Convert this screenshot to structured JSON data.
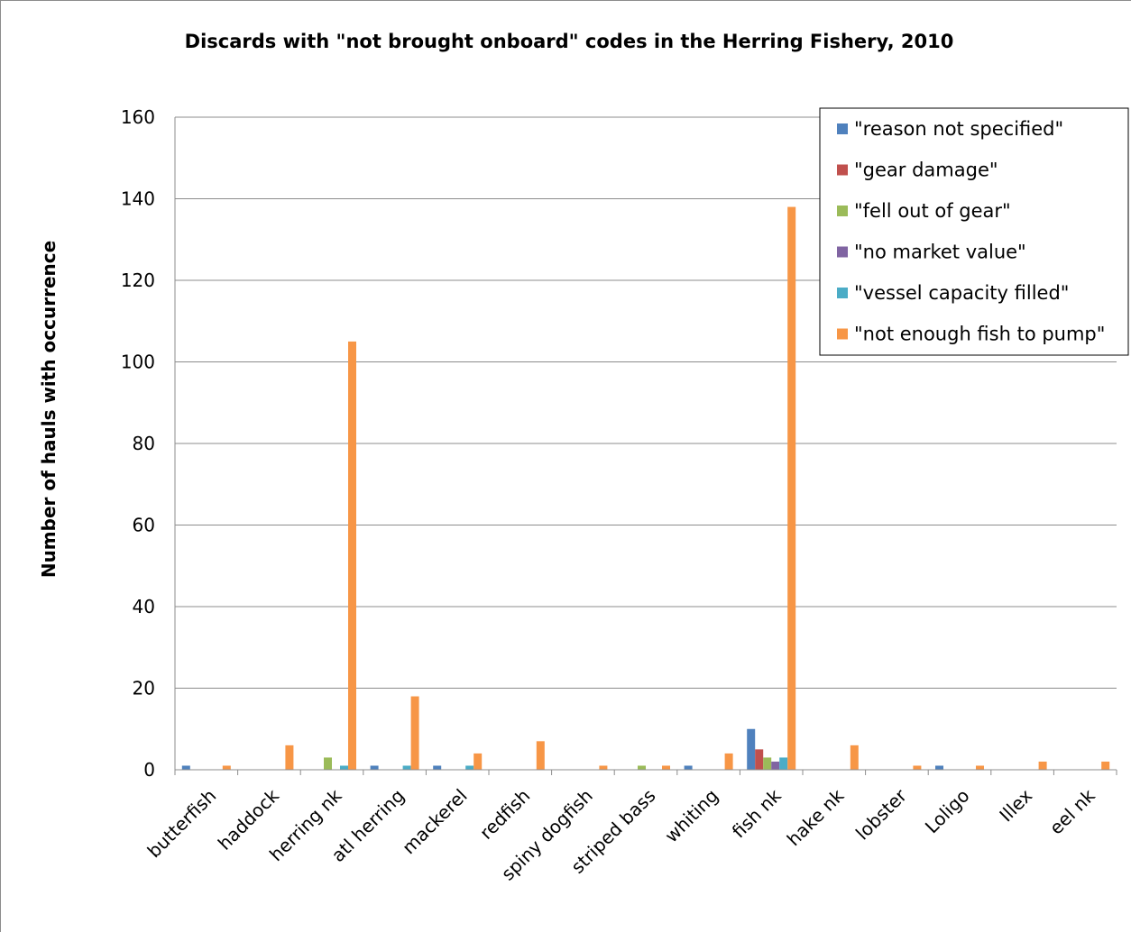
{
  "chart_data": {
    "type": "bar",
    "title": "Discards with \"not brought onboard\" codes in the Herring Fishery, 2010",
    "xlabel": "",
    "ylabel": "Number of hauls with occurrence",
    "ylim": [
      0,
      160
    ],
    "yticks": [
      "0",
      "20",
      "40",
      "60",
      "80",
      "100",
      "120",
      "140",
      "160"
    ],
    "grid": true,
    "legend_position": "top-right",
    "categories": [
      "butterfish",
      "haddock",
      "herring nk",
      "atl herring",
      "mackerel",
      "redfish",
      "spiny dogfish",
      "striped bass",
      "whiting",
      "fish nk",
      "hake nk",
      "lobster",
      "Loligo",
      "Illex",
      "eel nk"
    ],
    "series": [
      {
        "name": "\"reason not specified\"",
        "color": "#4f81bd",
        "values": [
          1,
          0,
          0,
          1,
          1,
          0,
          0,
          0,
          1,
          10,
          0,
          0,
          1,
          0,
          0
        ]
      },
      {
        "name": "\"gear damage\"",
        "color": "#c0504d",
        "values": [
          0,
          0,
          0,
          0,
          0,
          0,
          0,
          0,
          0,
          5,
          0,
          0,
          0,
          0,
          0
        ]
      },
      {
        "name": "\"fell out of gear\"",
        "color": "#9bbb59",
        "values": [
          0,
          0,
          3,
          0,
          0,
          0,
          0,
          1,
          0,
          3,
          0,
          0,
          0,
          0,
          0
        ]
      },
      {
        "name": "\"no market value\"",
        "color": "#8064a2",
        "values": [
          0,
          0,
          0,
          0,
          0,
          0,
          0,
          0,
          0,
          2,
          0,
          0,
          0,
          0,
          0
        ]
      },
      {
        "name": "\"vessel capacity filled\"",
        "color": "#4bacc6",
        "values": [
          0,
          0,
          1,
          1,
          1,
          0,
          0,
          0,
          0,
          3,
          0,
          0,
          0,
          0,
          0
        ]
      },
      {
        "name": "\"not enough fish to pump\"",
        "color": "#f79646",
        "values": [
          1,
          6,
          105,
          18,
          4,
          7,
          1,
          1,
          4,
          138,
          6,
          1,
          1,
          2,
          2
        ]
      }
    ]
  }
}
